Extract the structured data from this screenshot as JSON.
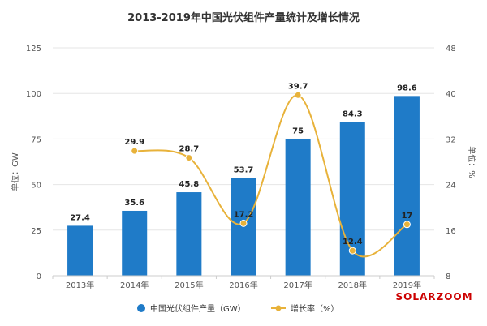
{
  "chart_data": {
    "type": "bar",
    "title": "2013-2019年中国光伏组件产量统计及增长情况",
    "categories": [
      "2013年",
      "2014年",
      "2015年",
      "2016年",
      "2017年",
      "2018年",
      "2019年"
    ],
    "ylabel_left": "单位：GW",
    "ylabel_right": "单位：%",
    "ylim_left": [
      0,
      125
    ],
    "yticks_left": [
      0,
      25,
      50,
      75,
      100,
      125
    ],
    "ylim_right": [
      8,
      48
    ],
    "yticks_right": [
      8,
      16,
      24,
      32,
      40,
      48
    ],
    "series": [
      {
        "name": "中国光伏组件产量（GW）",
        "type": "bar",
        "axis": "left",
        "color": "#1f7bc8",
        "values": [
          27.4,
          35.6,
          45.8,
          53.7,
          75,
          84.3,
          98.6
        ],
        "labels": [
          "27.4",
          "35.6",
          "45.8",
          "53.7",
          "75",
          "84.3",
          "98.6"
        ]
      },
      {
        "name": "增长率（%）",
        "type": "line",
        "axis": "right",
        "smooth": true,
        "color": "#e8b23a",
        "values": [
          null,
          29.9,
          28.7,
          17.2,
          39.7,
          12.4,
          17
        ],
        "labels": [
          "",
          "29.9",
          "28.7",
          "17.2",
          "39.7",
          "12.4",
          "17"
        ]
      }
    ],
    "legend_position": "bottom",
    "grid": true
  },
  "watermark": "SOLARZOOM"
}
